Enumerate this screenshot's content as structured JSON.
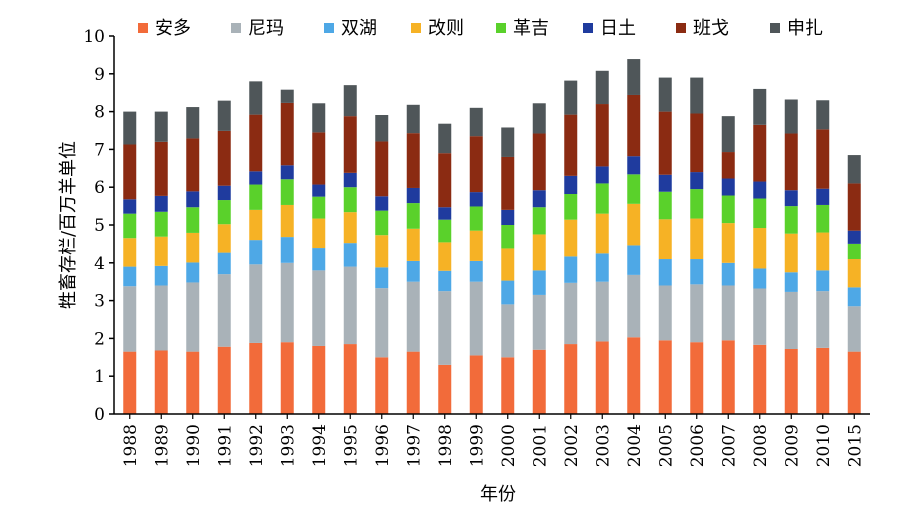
{
  "chart_data": {
    "type": "bar",
    "stacked": true,
    "title": "",
    "xlabel": "年份",
    "ylabel": "牲畜存栏/百万羊单位",
    "ylim": [
      0,
      10
    ],
    "yticks": [
      0,
      1,
      2,
      3,
      4,
      5,
      6,
      7,
      8,
      9,
      10
    ],
    "grid": false,
    "legend_position": "top",
    "categories": [
      "1988",
      "1989",
      "1990",
      "1991",
      "1992",
      "1993",
      "1994",
      "1995",
      "1996",
      "1997",
      "1998",
      "1999",
      "2000",
      "2001",
      "2002",
      "2003",
      "2004",
      "2005",
      "2006",
      "2007",
      "2008",
      "2009",
      "2010",
      "2015"
    ],
    "series": [
      {
        "name": "安多",
        "color": "#f26b3a",
        "values": [
          1.65,
          1.68,
          1.65,
          1.78,
          1.88,
          1.9,
          1.8,
          1.85,
          1.5,
          1.65,
          1.3,
          1.55,
          1.5,
          1.7,
          1.85,
          1.92,
          2.03,
          1.95,
          1.9,
          1.95,
          1.83,
          1.72,
          1.75,
          1.65
        ]
      },
      {
        "name": "尼玛",
        "color": "#a9b2b8",
        "values": [
          1.73,
          1.72,
          1.83,
          1.92,
          2.08,
          2.1,
          2.0,
          2.05,
          1.83,
          1.85,
          1.95,
          1.95,
          1.4,
          1.45,
          1.62,
          1.58,
          1.65,
          1.45,
          1.53,
          1.45,
          1.49,
          1.51,
          1.5,
          1.2
        ]
      },
      {
        "name": "双湖",
        "color": "#4ea8e6",
        "values": [
          0.52,
          0.52,
          0.53,
          0.57,
          0.64,
          0.68,
          0.59,
          0.62,
          0.55,
          0.55,
          0.54,
          0.55,
          0.63,
          0.65,
          0.7,
          0.75,
          0.78,
          0.7,
          0.67,
          0.6,
          0.53,
          0.52,
          0.55,
          0.5
        ]
      },
      {
        "name": "改则",
        "color": "#f6b225",
        "values": [
          0.75,
          0.77,
          0.78,
          0.75,
          0.8,
          0.85,
          0.78,
          0.82,
          0.85,
          0.85,
          0.75,
          0.8,
          0.85,
          0.95,
          0.97,
          1.05,
          1.1,
          1.05,
          1.07,
          1.05,
          1.07,
          1.02,
          1.0,
          0.75
        ]
      },
      {
        "name": "革吉",
        "color": "#5ad12b",
        "values": [
          0.65,
          0.66,
          0.68,
          0.64,
          0.67,
          0.68,
          0.58,
          0.66,
          0.65,
          0.68,
          0.6,
          0.64,
          0.62,
          0.72,
          0.68,
          0.8,
          0.78,
          0.73,
          0.78,
          0.73,
          0.78,
          0.73,
          0.73,
          0.4
        ]
      },
      {
        "name": "日土",
        "color": "#1f3b9e",
        "values": [
          0.38,
          0.42,
          0.42,
          0.38,
          0.35,
          0.37,
          0.32,
          0.38,
          0.38,
          0.4,
          0.33,
          0.38,
          0.4,
          0.45,
          0.48,
          0.45,
          0.48,
          0.45,
          0.45,
          0.45,
          0.45,
          0.42,
          0.43,
          0.35
        ]
      },
      {
        "name": "班戈",
        "color": "#8b2b12",
        "values": [
          1.45,
          1.43,
          1.4,
          1.45,
          1.5,
          1.65,
          1.38,
          1.5,
          1.45,
          1.45,
          1.43,
          1.48,
          1.4,
          1.5,
          1.62,
          1.65,
          1.62,
          1.67,
          1.55,
          0.7,
          1.5,
          1.5,
          1.57,
          1.25
        ]
      },
      {
        "name": "申扎",
        "color": "#4f5659",
        "values": [
          0.87,
          0.8,
          0.83,
          0.8,
          0.88,
          0.35,
          0.77,
          0.82,
          0.7,
          0.75,
          0.78,
          0.75,
          0.78,
          0.8,
          0.9,
          0.88,
          0.95,
          0.9,
          0.95,
          0.95,
          0.95,
          0.9,
          0.77,
          0.75
        ]
      }
    ]
  }
}
